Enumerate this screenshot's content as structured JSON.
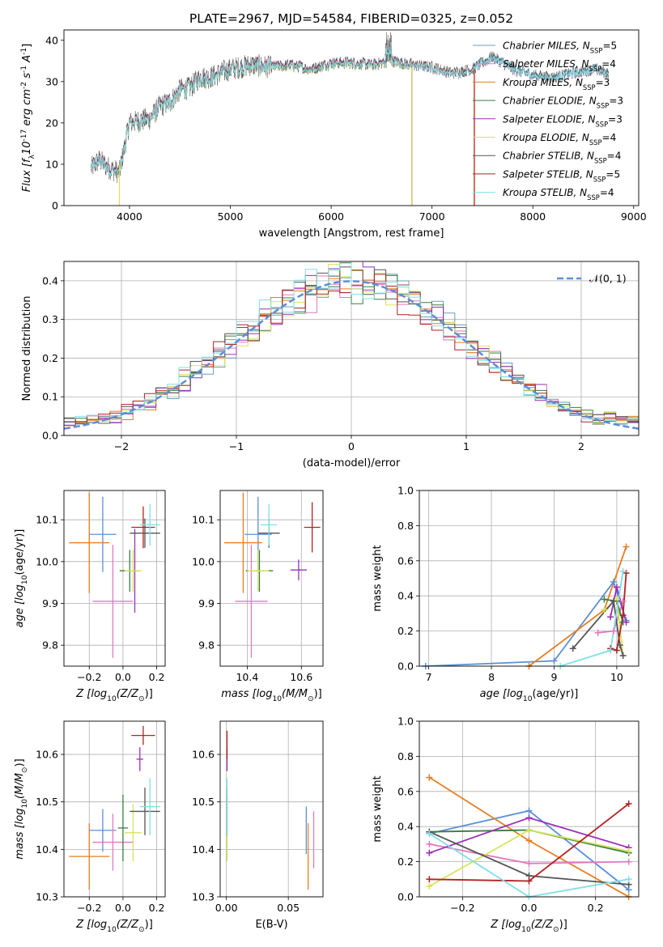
{
  "colors": {
    "chabrier_miles": "#6a9fb5",
    "salpeter_miles": "#e377c2",
    "kroupa_miles": "#e67e22",
    "chabrier_elodie": "#3a7d44",
    "salpeter_elodie": "#9b30b8",
    "kroupa_elodie": "#d8e35a",
    "chabrier_stelib": "#555555",
    "salpeter_stelib": "#b22222",
    "kroupa_stelib": "#7fdfe6",
    "gauss": "#5b8fd6",
    "misc_blue": "#6b8fd6"
  },
  "chart_data": [
    {
      "id": "spectrum",
      "type": "line",
      "title": "PLATE=2967, MJD=54584, FIBERID=0325, z=0.052",
      "xlabel": "wavelength [Angstrom, rest frame]",
      "ylabel": "Flux [f$_\\lambda$10$^{-17}$ erg cm$^{-2}$ s$^{-1}$ A$^{-1}$]",
      "xlim": [
        3350,
        9050
      ],
      "ylim": [
        0,
        42.5
      ],
      "xticks": [
        "4000",
        "5000",
        "6000",
        "7000",
        "8000",
        "9000"
      ],
      "yticks": [
        "0",
        "10",
        "20",
        "30",
        "40"
      ],
      "legend_position": "top-right",
      "continuum": {
        "x": [
          3620,
          3700,
          3800,
          3900,
          3950,
          4000,
          4100,
          4200,
          4300,
          4400,
          4500,
          4600,
          4700,
          4800,
          4900,
          5000,
          5200,
          5400,
          5600,
          5800,
          6000,
          6200,
          6400,
          6600,
          6800,
          7000,
          7200,
          7400,
          7600,
          7800,
          8000,
          8200,
          8400,
          8600,
          8750
        ],
        "y": [
          9,
          11,
          9,
          8,
          14,
          20,
          20.5,
          21,
          24,
          25,
          28,
          28.5,
          31,
          31,
          32,
          33,
          34,
          33.5,
          34,
          33,
          34.5,
          34.5,
          34,
          35,
          34,
          33.5,
          32,
          33,
          36,
          33,
          31.5,
          31,
          32,
          33,
          32
        ]
      },
      "series": [
        {
          "name": "Chabrier MILES, N$_{SSP}$=5",
          "color_key": "chabrier_miles",
          "start": 3620,
          "end": 8750,
          "offset": 0.4
        },
        {
          "name": "Salpeter MILES, N$_{SSP}$=4",
          "color_key": "salpeter_miles",
          "start": 3620,
          "end": 8750,
          "offset": -0.3
        },
        {
          "name": "Kroupa MILES, N$_{SSP}$=3",
          "color_key": "kroupa_miles",
          "start": 3620,
          "end": 7420,
          "offset": 0.2
        },
        {
          "name": "Chabrier ELODIE, N$_{SSP}$=3",
          "color_key": "chabrier_elodie",
          "start": 3620,
          "end": 6800,
          "offset": -0.2
        },
        {
          "name": "Salpeter ELODIE, N$_{SSP}$=3",
          "color_key": "salpeter_elodie",
          "start": 3620,
          "end": 6800,
          "offset": 0.3
        },
        {
          "name": "Kroupa ELODIE, N$_{SSP}$=4",
          "color_key": "kroupa_elodie",
          "start": 3900,
          "end": 6800,
          "offset": -0.4
        },
        {
          "name": "Chabrier STELIB, N$_{SSP}$=4",
          "color_key": "chabrier_stelib",
          "start": 3620,
          "end": 8750,
          "offset": 0.0
        },
        {
          "name": "Salpeter STELIB, N$_{SSP}$=5",
          "color_key": "salpeter_stelib",
          "start": 3620,
          "end": 7420,
          "offset": 0.1
        },
        {
          "name": "Kroupa STELIB, N$_{SSP}$=4",
          "color_key": "kroupa_stelib",
          "start": 3620,
          "end": 8750,
          "offset": -0.1
        }
      ]
    },
    {
      "id": "residuals",
      "type": "area",
      "xlabel": "(data-model)/error",
      "ylabel": "Normed distribution",
      "xlim": [
        -2.5,
        2.5
      ],
      "ylim": [
        0,
        0.45
      ],
      "xticks": [
        "−2",
        "−1",
        "0",
        "1",
        "2"
      ],
      "yticks": [
        "0.0",
        "0.1",
        "0.2",
        "0.3",
        "0.4"
      ],
      "grid": true,
      "legend_position": "top-right",
      "gauss_label": "$\\mathcal{N}$(0, 1)",
      "bin_width": 0.1,
      "histogram_colors": [
        "chabrier_miles",
        "salpeter_miles",
        "kroupa_miles",
        "chabrier_elodie",
        "salpeter_elodie",
        "kroupa_elodie",
        "chabrier_stelib",
        "salpeter_stelib",
        "kroupa_stelib"
      ]
    },
    {
      "id": "age_vs_Z",
      "type": "scatter",
      "xlabel": "Z [log$_{10}$(Z/Z$_\\odot$)]",
      "ylabel": "age  [log$_{10}$(age/yr)]",
      "xlim": [
        -0.35,
        0.25
      ],
      "ylim": [
        9.75,
        10.17
      ],
      "xticks": [
        "−0.2",
        "0.0",
        "0.2"
      ],
      "yticks": [
        "9.8",
        "9.9",
        "10.0",
        "10.1"
      ],
      "grid": true,
      "points": [
        {
          "color_key": "gauss",
          "x": -0.12,
          "y": 10.065,
          "ex": 0.08,
          "ey": 0.09
        },
        {
          "color_key": "kroupa_miles",
          "x": -0.2,
          "y": 10.045,
          "ex": 0.12,
          "ey": 0.12
        },
        {
          "color_key": "salpeter_miles",
          "x": -0.06,
          "y": 9.905,
          "ex": 0.12,
          "ey": 0.135
        },
        {
          "color_key": "chabrier_elodie",
          "x": 0.04,
          "y": 9.978,
          "ex": 0.06,
          "ey": 0.05
        },
        {
          "color_key": "salpeter_elodie",
          "x": 0.07,
          "y": 9.978,
          "ex": 0.03,
          "ey": 0.1
        },
        {
          "color_key": "kroupa_elodie",
          "x": 0.06,
          "y": 9.978,
          "ex": 0.05,
          "ey": 0.05
        },
        {
          "color_key": "chabrier_stelib",
          "x": 0.13,
          "y": 10.068,
          "ex": 0.09,
          "ey": 0.035
        },
        {
          "color_key": "salpeter_stelib",
          "x": 0.12,
          "y": 10.082,
          "ex": 0.07,
          "ey": 0.05
        },
        {
          "color_key": "kroupa_stelib",
          "x": 0.16,
          "y": 10.088,
          "ex": 0.06,
          "ey": 0.05
        }
      ]
    },
    {
      "id": "age_vs_mass",
      "type": "scatter",
      "xlabel": "mass [log$_{10}$(M/M$_\\odot$)]",
      "ylabel": "",
      "xlim": [
        10.3,
        10.68
      ],
      "ylim": [
        9.75,
        10.17
      ],
      "xticks": [
        "10.4",
        "10.6"
      ],
      "yticks": [
        "9.8",
        "9.9",
        "10.0",
        "10.1"
      ],
      "grid": true,
      "points": [
        {
          "color_key": "gauss",
          "x": 10.44,
          "y": 10.065,
          "ex": 0.05,
          "ey": 0.09
        },
        {
          "color_key": "kroupa_miles",
          "x": 10.385,
          "y": 10.045,
          "ex": 0.07,
          "ey": 0.12
        },
        {
          "color_key": "salpeter_miles",
          "x": 10.415,
          "y": 9.905,
          "ex": 0.06,
          "ey": 0.135
        },
        {
          "color_key": "chabrier_elodie",
          "x": 10.445,
          "y": 9.978,
          "ex": 0.05,
          "ey": 0.05
        },
        {
          "color_key": "salpeter_elodie",
          "x": 10.59,
          "y": 9.98,
          "ex": 0.03,
          "ey": 0.025
        },
        {
          "color_key": "kroupa_elodie",
          "x": 10.44,
          "y": 9.978,
          "ex": 0.04,
          "ey": 0.05
        },
        {
          "color_key": "chabrier_stelib",
          "x": 10.48,
          "y": 10.068,
          "ex": 0.04,
          "ey": 0.035
        },
        {
          "color_key": "salpeter_stelib",
          "x": 10.64,
          "y": 10.082,
          "ex": 0.03,
          "ey": 0.06
        },
        {
          "color_key": "kroupa_stelib",
          "x": 10.48,
          "y": 10.088,
          "ex": 0.03,
          "ey": 0.05
        }
      ]
    },
    {
      "id": "massweight_vs_age",
      "type": "line",
      "xlabel": "age  [log$_{10}$(age/yr)]",
      "ylabel": "mass weight",
      "xlim": [
        6.85,
        10.35
      ],
      "ylim": [
        0,
        1.0
      ],
      "xticks": [
        "7",
        "8",
        "9",
        "10"
      ],
      "yticks": [
        "0.0",
        "0.2",
        "0.4",
        "0.6",
        "0.8",
        "1.0"
      ],
      "grid": true,
      "series": [
        {
          "color_key": "gauss",
          "x": [
            6.95,
            9.0,
            9.95,
            10.15
          ],
          "y": [
            0.0,
            0.03,
            0.48,
            0.26
          ]
        },
        {
          "color_key": "kroupa_miles",
          "x": [
            8.6,
            9.8,
            10.15
          ],
          "y": [
            0.0,
            0.32,
            0.68
          ]
        },
        {
          "color_key": "salpeter_miles",
          "x": [
            9.7,
            9.95,
            10.1
          ],
          "y": [
            0.19,
            0.2,
            0.37
          ]
        },
        {
          "color_key": "chabrier_elodie",
          "x": [
            9.8,
            10.0,
            10.1
          ],
          "y": [
            0.38,
            0.37,
            0.25
          ]
        },
        {
          "color_key": "salpeter_elodie",
          "x": [
            9.9,
            10.0,
            10.15
          ],
          "y": [
            0.28,
            0.45,
            0.25
          ]
        },
        {
          "color_key": "kroupa_elodie",
          "x": [
            9.8,
            10.0,
            10.1
          ],
          "y": [
            0.32,
            0.38,
            0.06
          ]
        },
        {
          "color_key": "chabrier_stelib",
          "x": [
            9.3,
            9.95,
            10.05,
            10.1
          ],
          "y": [
            0.1,
            0.37,
            0.12,
            0.06
          ]
        },
        {
          "color_key": "salpeter_stelib",
          "x": [
            9.9,
            10.0,
            10.1,
            10.15
          ],
          "y": [
            0.1,
            0.09,
            0.29,
            0.53
          ]
        },
        {
          "color_key": "kroupa_stelib",
          "x": [
            9.1,
            9.9,
            10.1
          ],
          "y": [
            0.0,
            0.09,
            0.54
          ]
        }
      ]
    },
    {
      "id": "mass_vs_Z",
      "type": "scatter",
      "xlabel": "Z [log$_{10}$(Z/Z$_\\odot$)]",
      "ylabel": "mass [log$_{10}$(M/M$_\\odot$)]",
      "xlim": [
        -0.35,
        0.25
      ],
      "ylim": [
        10.3,
        10.67
      ],
      "xticks": [
        "−0.2",
        "0.0",
        "0.2"
      ],
      "yticks": [
        "10.3",
        "10.4",
        "10.5",
        "10.6"
      ],
      "grid": true,
      "points": [
        {
          "color_key": "gauss",
          "x": -0.12,
          "y": 10.44,
          "ex": 0.08,
          "ey": 0.045
        },
        {
          "color_key": "kroupa_miles",
          "x": -0.2,
          "y": 10.385,
          "ex": 0.12,
          "ey": 0.07
        },
        {
          "color_key": "salpeter_miles",
          "x": -0.06,
          "y": 10.415,
          "ex": 0.12,
          "ey": 0.06
        },
        {
          "color_key": "chabrier_elodie",
          "x": 0.0,
          "y": 10.445,
          "ex": 0.03,
          "ey": 0.07
        },
        {
          "color_key": "salpeter_elodie",
          "x": 0.1,
          "y": 10.59,
          "ex": 0.02,
          "ey": 0.025
        },
        {
          "color_key": "kroupa_elodie",
          "x": 0.06,
          "y": 10.435,
          "ex": 0.05,
          "ey": 0.06
        },
        {
          "color_key": "chabrier_stelib",
          "x": 0.13,
          "y": 10.48,
          "ex": 0.09,
          "ey": 0.05
        },
        {
          "color_key": "salpeter_stelib",
          "x": 0.12,
          "y": 10.64,
          "ex": 0.07,
          "ey": 0.02
        },
        {
          "color_key": "kroupa_stelib",
          "x": 0.16,
          "y": 10.49,
          "ex": 0.06,
          "ey": 0.06
        }
      ]
    },
    {
      "id": "mass_vs_ebv",
      "type": "scatter",
      "xlabel": "E(B-V)",
      "ylabel": "",
      "xlim": [
        -0.005,
        0.078
      ],
      "ylim": [
        10.3,
        10.67
      ],
      "xticks": [
        "0.00",
        "0.05"
      ],
      "yticks": [
        "10.3",
        "10.4",
        "10.5",
        "10.6"
      ],
      "grid": true,
      "points": [
        {
          "color_key": "gauss",
          "x": 0.0645,
          "y": 10.44,
          "ex": 0.0,
          "ey": 0.05
        },
        {
          "color_key": "kroupa_miles",
          "x": 0.066,
          "y": 10.385,
          "ex": 0.0,
          "ey": 0.07
        },
        {
          "color_key": "salpeter_miles",
          "x": 0.0705,
          "y": 10.42,
          "ex": 0.0,
          "ey": 0.06
        },
        {
          "color_key": "chabrier_elodie",
          "x": 0.0005,
          "y": 10.445,
          "ex": 0.0,
          "ey": 0.07
        },
        {
          "color_key": "salpeter_elodie",
          "x": 0.0005,
          "y": 10.59,
          "ex": 0.0,
          "ey": 0.025
        },
        {
          "color_key": "kroupa_elodie",
          "x": 0.0005,
          "y": 10.435,
          "ex": 0.0,
          "ey": 0.06
        },
        {
          "color_key": "chabrier_stelib",
          "x": 0.0005,
          "y": 10.48,
          "ex": 0.0,
          "ey": 0.05
        },
        {
          "color_key": "salpeter_stelib",
          "x": 0.0005,
          "y": 10.62,
          "ex": 0.0,
          "ey": 0.03
        },
        {
          "color_key": "kroupa_stelib",
          "x": 0.0005,
          "y": 10.49,
          "ex": 0.0,
          "ey": 0.06
        }
      ]
    },
    {
      "id": "massweight_vs_Z",
      "type": "line",
      "xlabel": "Z [log$_{10}$(Z/Z$_\\odot$)]",
      "ylabel": "mass weight",
      "xlim": [
        -0.33,
        0.33
      ],
      "ylim": [
        0,
        1.0
      ],
      "xticks": [
        "−0.2",
        "0.0",
        "0.2"
      ],
      "yticks": [
        "0.0",
        "0.2",
        "0.4",
        "0.6",
        "0.8",
        "1.0"
      ],
      "grid": true,
      "series": [
        {
          "color_key": "gauss",
          "x": [
            -0.3,
            0.0,
            0.3
          ],
          "y": [
            0.36,
            0.49,
            0.04
          ]
        },
        {
          "color_key": "kroupa_miles",
          "x": [
            -0.3,
            0.0,
            0.3
          ],
          "y": [
            0.68,
            0.32,
            0.0
          ]
        },
        {
          "color_key": "salpeter_miles",
          "x": [
            -0.3,
            0.0,
            0.3
          ],
          "y": [
            0.3,
            0.19,
            0.2
          ]
        },
        {
          "color_key": "chabrier_elodie",
          "x": [
            -0.3,
            0.0,
            0.3
          ],
          "y": [
            0.37,
            0.38,
            0.25
          ]
        },
        {
          "color_key": "salpeter_elodie",
          "x": [
            -0.3,
            0.0,
            0.3
          ],
          "y": [
            0.25,
            0.45,
            0.28
          ]
        },
        {
          "color_key": "kroupa_elodie",
          "x": [
            -0.3,
            0.0,
            0.3
          ],
          "y": [
            0.06,
            0.38,
            0.26
          ]
        },
        {
          "color_key": "chabrier_stelib",
          "x": [
            -0.3,
            0.0,
            0.3
          ],
          "y": [
            0.37,
            0.12,
            0.07
          ]
        },
        {
          "color_key": "salpeter_stelib",
          "x": [
            -0.3,
            0.0,
            0.3
          ],
          "y": [
            0.1,
            0.09,
            0.53
          ]
        },
        {
          "color_key": "kroupa_stelib",
          "x": [
            -0.3,
            0.0,
            0.3
          ],
          "y": [
            0.36,
            0.0,
            0.1
          ]
        }
      ]
    }
  ]
}
